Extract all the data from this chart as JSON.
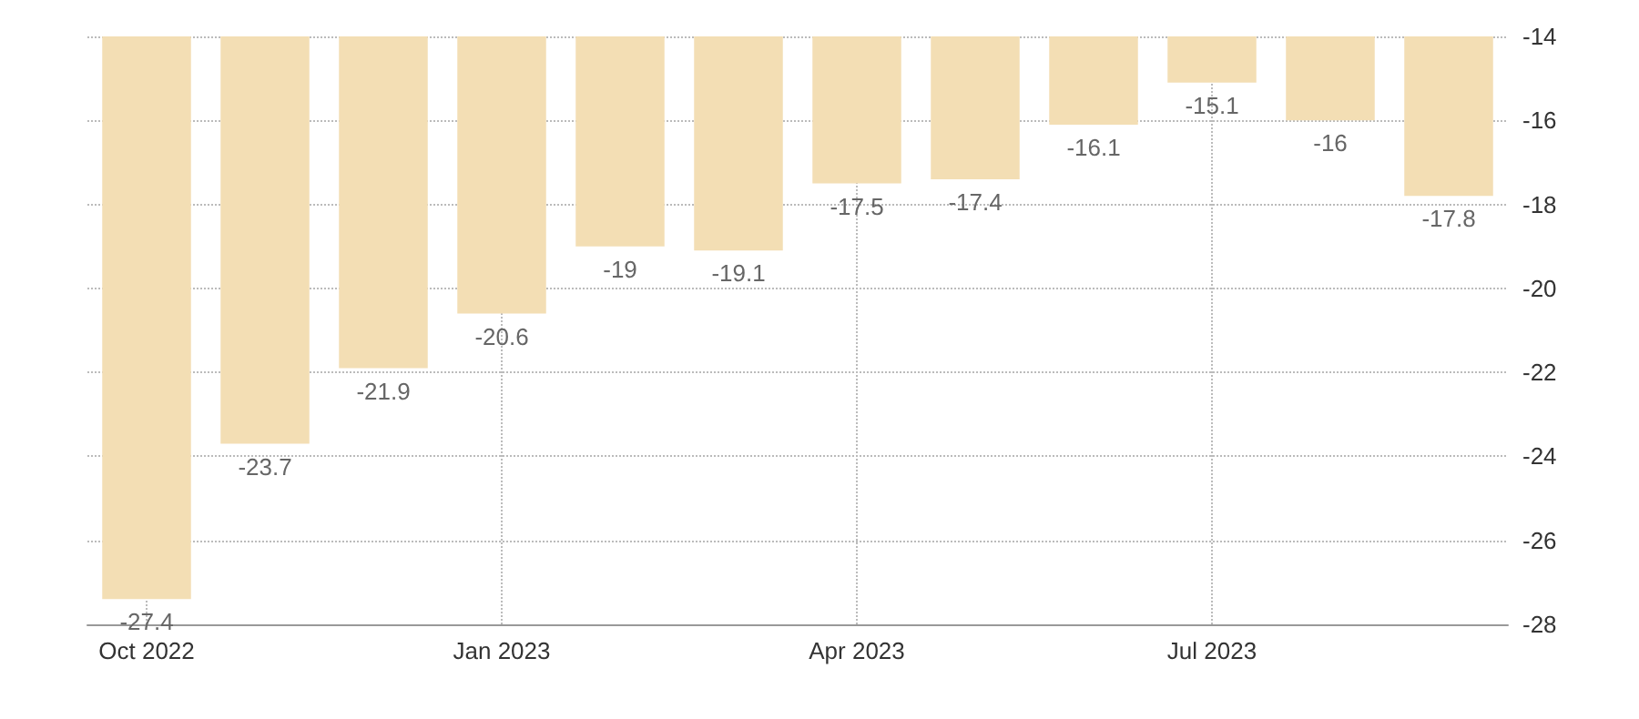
{
  "chart_data": {
    "type": "bar",
    "categories": [
      "Oct 2022",
      null,
      null,
      "Jan 2023",
      null,
      null,
      "Apr 2023",
      null,
      null,
      "Jul 2023",
      null,
      null
    ],
    "values": [
      -27.4,
      -23.7,
      -21.9,
      -20.6,
      -19,
      -19.1,
      -17.5,
      -17.4,
      -16.1,
      -15.1,
      -16,
      -17.8
    ],
    "color": "#f3deb4",
    "ylim": [
      -28,
      -14
    ],
    "yticks": [
      -28,
      -26,
      -24,
      -22,
      -20,
      -18,
      -16,
      -14
    ],
    "grid": true,
    "data_labels": true
  }
}
